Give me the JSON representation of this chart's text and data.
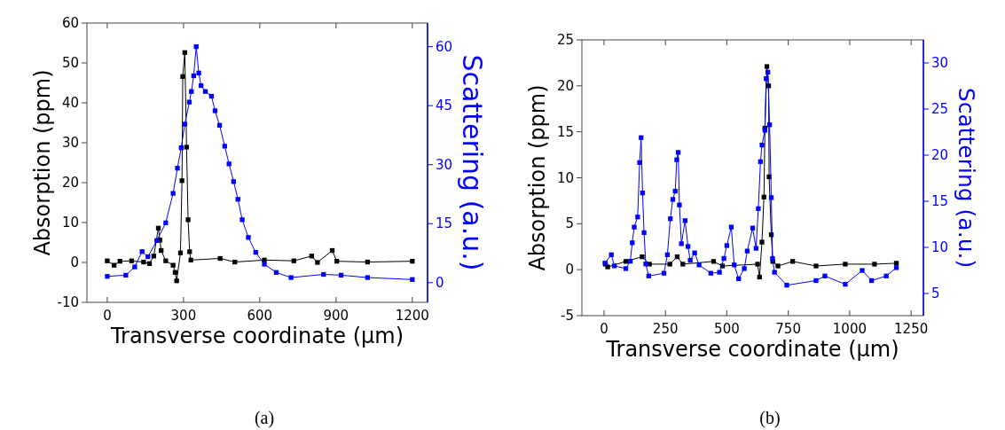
{
  "chart_data": [
    {
      "type": "line",
      "xlabel": "Transverse coordinate (μm)",
      "ylabel": "Absorption (ppm)",
      "y2label": "Scattering (a.u.)",
      "xlim": [
        -80,
        1260
      ],
      "xticks": [
        0,
        300,
        600,
        900,
        1200
      ],
      "ylim": [
        -10,
        60
      ],
      "yticks": [
        -10,
        0,
        10,
        20,
        30,
        40,
        50,
        60
      ],
      "y2lim": [
        -5,
        66
      ],
      "y2ticks": [
        0,
        15,
        30,
        45,
        60
      ],
      "marker": "square",
      "line_style": "solid",
      "grid": false,
      "annotations": [
        "(a)"
      ],
      "series": [
        {
          "color": "#000000",
          "x": [
            0,
            27,
            50,
            96,
            143,
            166,
            183,
            201,
            207,
            212,
            230,
            259,
            267,
            273,
            288,
            294,
            297,
            305,
            312,
            318,
            324,
            329,
            444,
            502,
            618,
            734,
            804,
            827,
            885,
            903,
            1024,
            1200
          ],
          "values": [
            0.4,
            -0.7,
            0.3,
            0.4,
            0.1,
            -0.3,
            1.6,
            8.6,
            5.6,
            3.0,
            0.4,
            -0.7,
            -2.5,
            -4.6,
            2.4,
            20.5,
            46.6,
            52.6,
            28.9,
            10.7,
            2.7,
            0.6,
            1.0,
            0.1,
            0.6,
            0.4,
            1.6,
            0.0,
            3.0,
            0.3,
            0.1,
            0.3
          ]
        },
        {
          "color": "#0000ff",
          "axis": "y2",
          "x": [
            0,
            73,
            108,
            137,
            160,
            195,
            230,
            259,
            276,
            291,
            305,
            323,
            331,
            340,
            350,
            360,
            369,
            386,
            410,
            424,
            442,
            462,
            479,
            497,
            514,
            531,
            555,
            584,
            618,
            665,
            723,
            851,
            920,
            1024,
            1200
          ],
          "values": [
            1.6,
            1.9,
            4.0,
            7.9,
            6.6,
            10.7,
            15.2,
            22.7,
            29.1,
            34.3,
            40.3,
            45.9,
            48.6,
            52.6,
            60,
            53.3,
            50.1,
            48.6,
            47.4,
            43.7,
            40.0,
            34.7,
            30.2,
            25.7,
            21.2,
            16.0,
            11.5,
            7.7,
            4.7,
            2.6,
            1.3,
            2.1,
            1.9,
            1.3,
            0.8
          ]
        }
      ]
    },
    {
      "type": "line",
      "xlabel": "Transverse coordinate (μm)",
      "ylabel": "Absorption (ppm)",
      "y2label": "Scattering (a.u.)",
      "xlim": [
        -90,
        1300
      ],
      "xticks": [
        0,
        250,
        500,
        750,
        1000,
        1250
      ],
      "ylim": [
        -5,
        25
      ],
      "yticks": [
        -5,
        0,
        5,
        10,
        15,
        20,
        25
      ],
      "y2lim": [
        2.6,
        32.5
      ],
      "y2ticks": [
        5,
        10,
        15,
        20,
        25,
        30
      ],
      "marker": "square",
      "line_style": "solid",
      "grid": false,
      "annotations": [
        "(b)"
      ],
      "series": [
        {
          "color": "#000000",
          "x": [
            6,
            15,
            89,
            155,
            185,
            268,
            298,
            321,
            446,
            482,
            625,
            633,
            643,
            651,
            655,
            663,
            670,
            672,
            681,
            687,
            708,
            768,
            863,
            982,
            1101,
            1190
          ],
          "values": [
            0.6,
            0.3,
            0.9,
            1.4,
            0.6,
            0.6,
            1.4,
            0.6,
            0.9,
            0.4,
            0.6,
            -0.8,
            3.0,
            7.9,
            15.4,
            22.1,
            20.0,
            10.1,
            3.8,
            0.9,
            0.4,
            0.9,
            0.4,
            0.6,
            0.6,
            0.7
          ]
        },
        {
          "color": "#0000ff",
          "axis": "y2",
          "x": [
            4,
            30,
            42,
            89,
            107,
            115,
            123,
            137,
            145,
            151,
            157,
            163,
            170,
            182,
            244,
            258,
            270,
            280,
            290,
            296,
            302,
            307,
            315,
            330,
            342,
            351,
            369,
            387,
            435,
            470,
            488,
            500,
            518,
            530,
            548,
            571,
            583,
            605,
            619,
            628,
            637,
            643,
            655,
            660,
            667,
            674,
            681,
            686,
            694,
            744,
            863,
            899,
            982,
            1051,
            1089,
            1149,
            1190
          ],
          "values": [
            8.3,
            9.2,
            8.0,
            7.7,
            8.5,
            10.5,
            12.2,
            13.3,
            19.2,
            21.9,
            15.9,
            11.6,
            8.2,
            6.9,
            7.2,
            9.2,
            13.1,
            15.2,
            16.1,
            19.5,
            20.3,
            14.6,
            10.4,
            12.9,
            10.1,
            8.6,
            9.4,
            8.1,
            7.2,
            7.3,
            8.8,
            10.2,
            12.2,
            8.1,
            6.6,
            7.7,
            9.6,
            12.1,
            9.9,
            14.2,
            19.3,
            21.1,
            22.7,
            28.3,
            29.0,
            23.3,
            15.4,
            8.8,
            7.3,
            5.9,
            6.4,
            6.9,
            6.0,
            7.5,
            6.4,
            6.9,
            7.8
          ]
        }
      ]
    }
  ]
}
